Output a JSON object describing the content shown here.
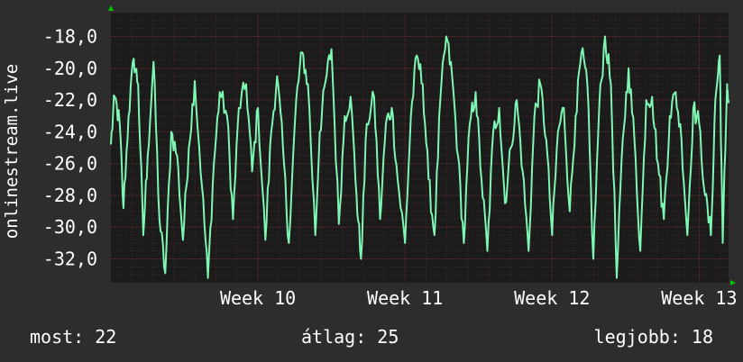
{
  "chart_data": {
    "type": "line",
    "ylabel": "onlinestream.live",
    "ylim": [
      -33.5,
      -16.5
    ],
    "yticks": [
      -18,
      -20,
      -22,
      -24,
      -26,
      -28,
      -30,
      -32
    ],
    "ytick_labels": [
      "-18,0",
      "-20,0",
      "-22,0",
      "-24,0",
      "-26,0",
      "-28,0",
      "-30,0",
      "-32,0"
    ],
    "xlim": [
      0,
      4.2
    ],
    "xticks": [
      1,
      2,
      3,
      4
    ],
    "xtick_labels": [
      "Week 10",
      "Week 11",
      "Week 12",
      "Week 13"
    ],
    "grid": true,
    "series": [
      {
        "color": "#7ff7b4",
        "anchors": [
          [
            0.0,
            -24.8
          ],
          [
            0.025,
            -21.8
          ],
          [
            0.06,
            -23.5
          ],
          [
            0.085,
            -28.8
          ],
          [
            0.12,
            -23.0
          ],
          [
            0.155,
            -19.4
          ],
          [
            0.185,
            -21.0
          ],
          [
            0.22,
            -30.5
          ],
          [
            0.25,
            -25.5
          ],
          [
            0.29,
            -19.6
          ],
          [
            0.33,
            -29.5
          ],
          [
            0.37,
            -32.9
          ],
          [
            0.41,
            -24.0
          ],
          [
            0.45,
            -25.5
          ],
          [
            0.49,
            -30.8
          ],
          [
            0.53,
            -25.0
          ],
          [
            0.57,
            -20.8
          ],
          [
            0.62,
            -27.5
          ],
          [
            0.66,
            -33.2
          ],
          [
            0.7,
            -26.0
          ],
          [
            0.74,
            -21.5
          ],
          [
            0.79,
            -23.0
          ],
          [
            0.83,
            -29.5
          ],
          [
            0.87,
            -22.5
          ],
          [
            0.92,
            -21.0
          ],
          [
            0.96,
            -26.5
          ],
          [
            1.0,
            -22.5
          ],
          [
            1.05,
            -30.8
          ],
          [
            1.09,
            -24.0
          ],
          [
            1.13,
            -20.5
          ],
          [
            1.17,
            -25.0
          ],
          [
            1.21,
            -31.0
          ],
          [
            1.26,
            -22.0
          ],
          [
            1.3,
            -19.0
          ],
          [
            1.34,
            -21.0
          ],
          [
            1.39,
            -30.5
          ],
          [
            1.42,
            -24.0
          ],
          [
            1.46,
            -20.8
          ],
          [
            1.5,
            -18.8
          ],
          [
            1.55,
            -29.8
          ],
          [
            1.59,
            -23.0
          ],
          [
            1.63,
            -21.8
          ],
          [
            1.67,
            -28.0
          ],
          [
            1.7,
            -32.0
          ],
          [
            1.74,
            -23.5
          ],
          [
            1.79,
            -21.8
          ],
          [
            1.83,
            -29.5
          ],
          [
            1.87,
            -23.5
          ],
          [
            1.91,
            -22.5
          ],
          [
            1.95,
            -27.0
          ],
          [
            2.0,
            -31.0
          ],
          [
            2.04,
            -23.0
          ],
          [
            2.08,
            -19.2
          ],
          [
            2.12,
            -21.0
          ],
          [
            2.16,
            -27.0
          ],
          [
            2.2,
            -30.5
          ],
          [
            2.24,
            -22.0
          ],
          [
            2.28,
            -18.0
          ],
          [
            2.32,
            -20.5
          ],
          [
            2.36,
            -25.5
          ],
          [
            2.4,
            -31.0
          ],
          [
            2.44,
            -23.5
          ],
          [
            2.48,
            -21.5
          ],
          [
            2.52,
            -27.0
          ],
          [
            2.56,
            -31.5
          ],
          [
            2.6,
            -24.0
          ],
          [
            2.64,
            -22.5
          ],
          [
            2.68,
            -28.5
          ],
          [
            2.72,
            -25.0
          ],
          [
            2.76,
            -22.0
          ],
          [
            2.8,
            -26.5
          ],
          [
            2.84,
            -31.5
          ],
          [
            2.88,
            -23.0
          ],
          [
            2.92,
            -21.0
          ],
          [
            2.96,
            -24.5
          ],
          [
            3.0,
            -30.5
          ],
          [
            3.04,
            -24.0
          ],
          [
            3.08,
            -22.5
          ],
          [
            3.12,
            -29.0
          ],
          [
            3.16,
            -23.0
          ],
          [
            3.2,
            -19.0
          ],
          [
            3.24,
            -21.0
          ],
          [
            3.28,
            -32.0
          ],
          [
            3.32,
            -22.5
          ],
          [
            3.36,
            -18.0
          ],
          [
            3.4,
            -21.0
          ],
          [
            3.44,
            -33.2
          ],
          [
            3.48,
            -24.5
          ],
          [
            3.52,
            -20.0
          ],
          [
            3.56,
            -24.5
          ],
          [
            3.6,
            -31.5
          ],
          [
            3.64,
            -22.0
          ],
          [
            3.68,
            -21.8
          ],
          [
            3.72,
            -26.0
          ],
          [
            3.76,
            -29.5
          ],
          [
            3.8,
            -23.0
          ],
          [
            3.84,
            -21.5
          ],
          [
            3.88,
            -24.5
          ],
          [
            3.92,
            -30.5
          ],
          [
            3.96,
            -22.5
          ],
          [
            4.0,
            -23.5
          ],
          [
            4.04,
            -28.0
          ],
          [
            4.08,
            -30.5
          ],
          [
            4.11,
            -22.0
          ],
          [
            4.14,
            -19.2
          ],
          [
            4.16,
            -31.0
          ],
          [
            4.19,
            -21.0
          ],
          [
            4.2,
            -22.2
          ]
        ]
      }
    ]
  },
  "footer": {
    "current": "most: 22",
    "average": "átlag: 25",
    "max": "legjobb: 18"
  },
  "colors": {
    "background": "#2d2d2d",
    "plot_background": "#1b1b1b",
    "major_grid": "#6e2e2e",
    "minor_grid": "#4d2828",
    "line": "#7ff7b4",
    "axis_arrow": "#00c800",
    "text": "#ffffff"
  }
}
